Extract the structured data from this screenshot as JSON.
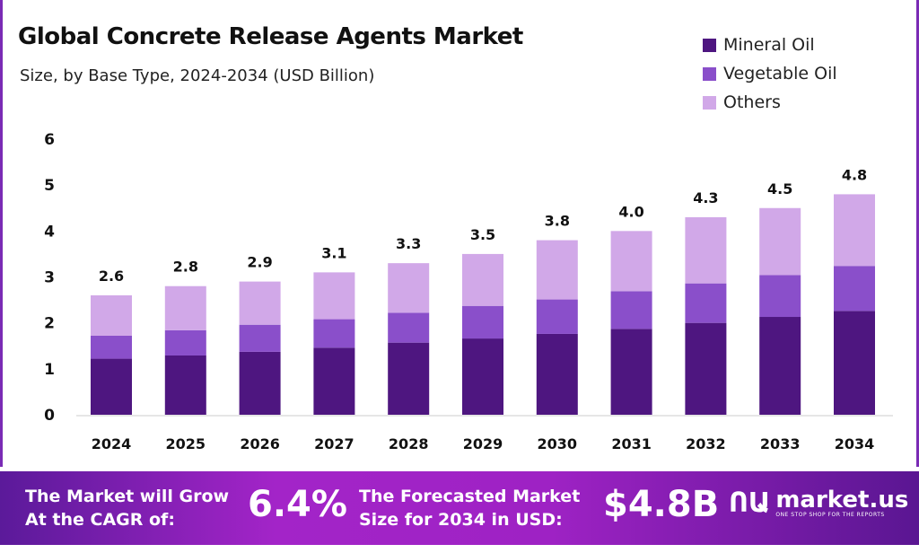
{
  "chart_data": {
    "type": "bar",
    "stacked": true,
    "title": "Global Concrete Release Agents Market",
    "subtitle": "Size, by Base Type, 2024-2034 (USD Billion)",
    "categories": [
      "2024",
      "2025",
      "2026",
      "2027",
      "2028",
      "2029",
      "2030",
      "2031",
      "2032",
      "2033",
      "2034"
    ],
    "series": [
      {
        "name": "Mineral Oil",
        "color": "#4e1680",
        "values": [
          1.22,
          1.29,
          1.37,
          1.46,
          1.57,
          1.66,
          1.76,
          1.87,
          2.0,
          2.13,
          2.26
        ]
      },
      {
        "name": "Vegetable Oil",
        "color": "#8a4fca",
        "values": [
          0.5,
          0.55,
          0.59,
          0.62,
          0.65,
          0.71,
          0.75,
          0.82,
          0.86,
          0.91,
          0.98
        ]
      },
      {
        "name": "Others",
        "color": "#d1a8e8",
        "values": [
          0.88,
          0.96,
          0.94,
          1.02,
          1.08,
          1.13,
          1.29,
          1.31,
          1.44,
          1.46,
          1.56
        ]
      }
    ],
    "totals": [
      "2.6",
      "2.8",
      "2.9",
      "3.1",
      "3.3",
      "3.5",
      "3.8",
      "4.0",
      "4.3",
      "4.5",
      "4.8"
    ],
    "yticks": [
      "0",
      "1",
      "2",
      "3",
      "4",
      "5",
      "6"
    ],
    "ylim": [
      0,
      6
    ],
    "grid": false,
    "legend": "top-right"
  },
  "banner": {
    "cagr_label_1": "The Market will Grow",
    "cagr_label_2": "At the CAGR of:",
    "cagr_value": "6.4%",
    "forecast_label_1": "The Forecasted Market",
    "forecast_label_2": "Size for 2034 in USD:",
    "forecast_value": "$4.8B",
    "logo_name": "market.us",
    "logo_tagline": "ONE STOP SHOP FOR THE REPORTS"
  }
}
